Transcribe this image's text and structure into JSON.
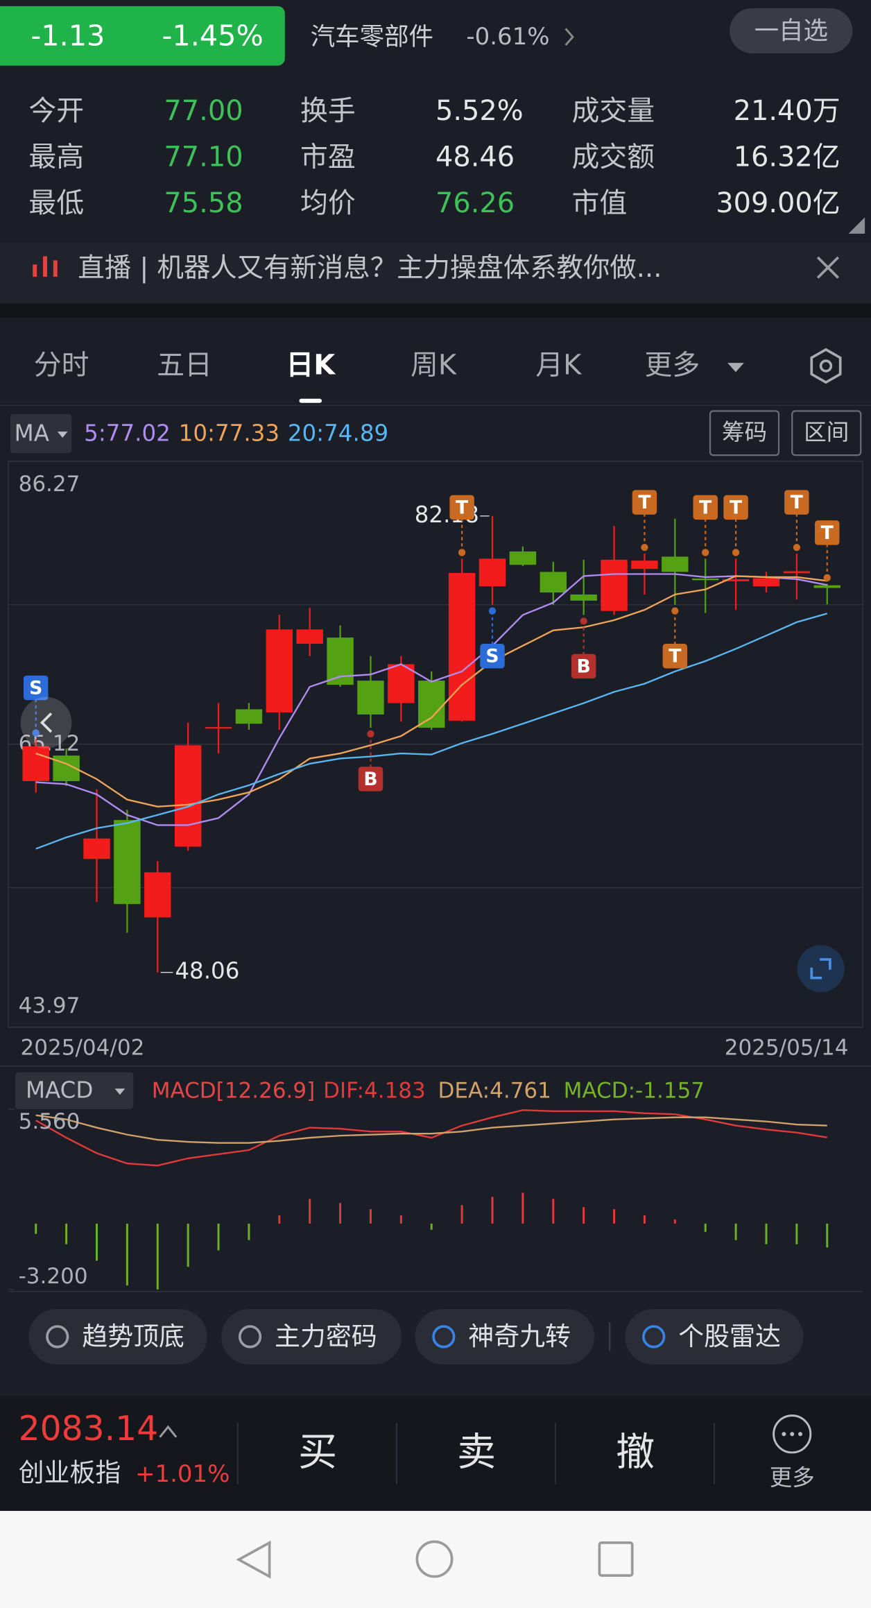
{
  "quote": {
    "change": "-1.13",
    "change_pct": "-1.45%",
    "sector": "汽车零部件",
    "sector_change": "-0.61%",
    "watch_button": "一自选"
  },
  "stats": [
    {
      "label": "今开",
      "value": "77.00",
      "color": "#3fc15a"
    },
    {
      "label": "换手",
      "value": "5.52%",
      "color": "#e6e6e6"
    },
    {
      "label": "成交量",
      "value": "21.40万",
      "color": "#e6e6e6"
    },
    {
      "label": "最高",
      "value": "77.10",
      "color": "#3fc15a"
    },
    {
      "label": "市盈",
      "value": "48.46",
      "color": "#e6e6e6"
    },
    {
      "label": "成交额",
      "value": "16.32亿",
      "color": "#e6e6e6"
    },
    {
      "label": "最低",
      "value": "75.58",
      "color": "#3fc15a"
    },
    {
      "label": "均价",
      "value": "76.26",
      "color": "#3fc15a"
    },
    {
      "label": "市值",
      "value": "309.00亿",
      "color": "#e6e6e6"
    }
  ],
  "banner": "直播 | 机器人又有新消息？主力操盘体系教你做...",
  "tabs": [
    "分时",
    "五日",
    "日K",
    "周K",
    "月K",
    "更多"
  ],
  "active_tab": 2,
  "tools": [
    "筹码",
    "区间"
  ],
  "chart_data": [
    {
      "type": "candlestick",
      "indicator": "MA",
      "categories": [
        "2025/04/02",
        null,
        null,
        null,
        null,
        null,
        null,
        null,
        null,
        null,
        null,
        null,
        null,
        null,
        null,
        null,
        null,
        null,
        null,
        null,
        null,
        null,
        null,
        null,
        null,
        null,
        "2025/05/14"
      ],
      "open": [
        62.36,
        64.27,
        56.54,
        59.45,
        52.17,
        57.46,
        66.3,
        67.73,
        67.5,
        72.63,
        73.09,
        69.87,
        68.19,
        69.87,
        66.88,
        76.92,
        79.53,
        78.0,
        76.31,
        75.08,
        78.22,
        79.14,
        77.5,
        77.3,
        76.92,
        77.9,
        77.0
      ],
      "high": [
        65.5,
        64.8,
        61.75,
        60.22,
        56.38,
        66.73,
        68.2,
        68.2,
        74.78,
        75.31,
        74.0,
        71.71,
        71.71,
        70.56,
        78.99,
        82.18,
        79.9,
        78.76,
        78.91,
        81.44,
        79.37,
        81.98,
        78.99,
        78.99,
        78.0,
        79.37,
        77.1
      ],
      "low": [
        61.5,
        62.0,
        53.32,
        51.02,
        48.06,
        57.15,
        64.43,
        66.2,
        66.19,
        71.71,
        69.41,
        66.35,
        66.8,
        66.19,
        66.8,
        75.54,
        78.45,
        75.54,
        74.78,
        74.78,
        76.31,
        75.54,
        74.93,
        75.16,
        76.46,
        75.93,
        75.58
      ],
      "close": [
        64.97,
        62.36,
        58.07,
        53.17,
        55.54,
        65.04,
        66.4,
        66.65,
        73.7,
        73.7,
        69.56,
        67.34,
        71.1,
        66.35,
        77.92,
        78.99,
        78.53,
        76.46,
        75.85,
        78.91,
        78.84,
        78.0,
        77.38,
        77.45,
        77.53,
        78.05,
        76.8
      ],
      "up_color": "#f21c1c",
      "down_color": "#55a114",
      "series": [
        {
          "label": "5:77.02",
          "color": "#b08cf2",
          "values": [
            62.28,
            62.13,
            61.37,
            59.83,
            59.07,
            59.07,
            59.6,
            61.37,
            65.58,
            69.41,
            70.18,
            70.33,
            71.1,
            69.79,
            70.56,
            72.48,
            74.78,
            75.7,
            77.69,
            77.84,
            77.84,
            77.84,
            77.61,
            77.69,
            77.61,
            77.46,
            77.02
          ]
        },
        {
          "label": "10:77.33",
          "color": "#f0a458",
          "values": [
            64.43,
            63.66,
            62.51,
            60.98,
            60.45,
            60.6,
            60.98,
            61.52,
            62.51,
            64.05,
            64.43,
            65.04,
            65.73,
            67.11,
            69.56,
            71.33,
            72.48,
            73.63,
            73.86,
            74.39,
            75.16,
            76.31,
            76.69,
            77.69,
            77.61,
            77.61,
            77.33
          ]
        },
        {
          "label": "20:74.89",
          "color": "#58b6f2",
          "values": [
            57.3,
            58.15,
            58.84,
            59.22,
            59.83,
            60.45,
            61.37,
            62.05,
            62.9,
            63.66,
            64.05,
            64.2,
            64.43,
            64.35,
            65.2,
            65.89,
            66.65,
            67.42,
            68.19,
            69.03,
            69.64,
            70.56,
            71.33,
            72.25,
            73.24,
            74.24,
            74.89
          ]
        }
      ],
      "ylim": [
        43.97,
        86.27
      ],
      "yticks": [
        43.97,
        65.12,
        86.27
      ],
      "extremes": [
        {
          "candle": 15,
          "at": "high"
        },
        {
          "candle": 4,
          "at": "low"
        }
      ],
      "signal_colors": {
        "S": "#2b6cd8",
        "B": "#b3302c",
        "T": "#c96a22"
      },
      "signals": [
        {
          "candle": 0,
          "label": "S",
          "side": "above"
        },
        {
          "candle": 11,
          "label": "B",
          "side": "below"
        },
        {
          "candle": 14,
          "label": "T",
          "side": "above"
        },
        {
          "candle": 15,
          "label": "S",
          "side": "below"
        },
        {
          "candle": 18,
          "label": "B",
          "side": "below"
        },
        {
          "candle": 20,
          "label": "T",
          "side": "above"
        },
        {
          "candle": 21,
          "label": "T",
          "side": "below"
        },
        {
          "candle": 22,
          "label": "T",
          "side": "above"
        },
        {
          "candle": 23,
          "label": "T",
          "side": "above"
        },
        {
          "candle": 25,
          "label": "T",
          "side": "above"
        },
        {
          "candle": 26,
          "label": "T",
          "side": "above"
        }
      ]
    },
    {
      "type": "macd",
      "indicator": "MACD",
      "params": "MACD[12.26.9]",
      "params_color": "#e24646",
      "series": [
        {
          "label": "DIF:4.183",
          "color": "#e23a3a",
          "values": [
            5.01,
            4.17,
            3.42,
            2.92,
            2.82,
            3.17,
            3.37,
            3.57,
            4.27,
            4.66,
            4.61,
            4.47,
            4.47,
            4.17,
            4.76,
            5.16,
            5.51,
            5.46,
            5.46,
            5.46,
            5.36,
            5.31,
            5.06,
            4.76,
            4.57,
            4.42,
            4.183
          ]
        },
        {
          "label": "DEA:4.761",
          "color": "#d2a26c",
          "values": [
            5.26,
            5.06,
            4.66,
            4.32,
            4.07,
            3.97,
            3.92,
            3.92,
            4.02,
            4.17,
            4.27,
            4.32,
            4.37,
            4.37,
            4.47,
            4.66,
            4.76,
            4.86,
            4.96,
            5.06,
            5.11,
            5.16,
            5.16,
            5.06,
            4.96,
            4.81,
            4.761
          ]
        }
      ],
      "histogram": {
        "label": "MACD:-1.157",
        "color": "#74b22a",
        "up_color": "#e23a3a",
        "down_color": "#6cb126",
        "values": [
          -0.5,
          -1.0,
          -1.8,
          -3.0,
          -3.2,
          -2.1,
          -1.3,
          -0.8,
          0.4,
          1.2,
          1.0,
          0.7,
          0.4,
          -0.3,
          0.9,
          1.3,
          1.5,
          1.2,
          0.8,
          0.7,
          0.4,
          0.2,
          -0.4,
          -0.8,
          -1.0,
          -1.0,
          -1.157
        ]
      },
      "ylim": [
        -3.2,
        5.56
      ],
      "yticks": [
        {
          "value": 5.56,
          "label": "5.560"
        },
        {
          "value": -3.2,
          "label": "-3.200"
        }
      ]
    }
  ],
  "chips": [
    "趋势顶底",
    "主力密码",
    "神奇九转",
    "个股雷达"
  ],
  "footer": {
    "index_value": "2083.14",
    "index_name": "创业板指",
    "index_change": "+1.01%",
    "actions": [
      "买",
      "卖",
      "撤"
    ],
    "more": "更多"
  }
}
